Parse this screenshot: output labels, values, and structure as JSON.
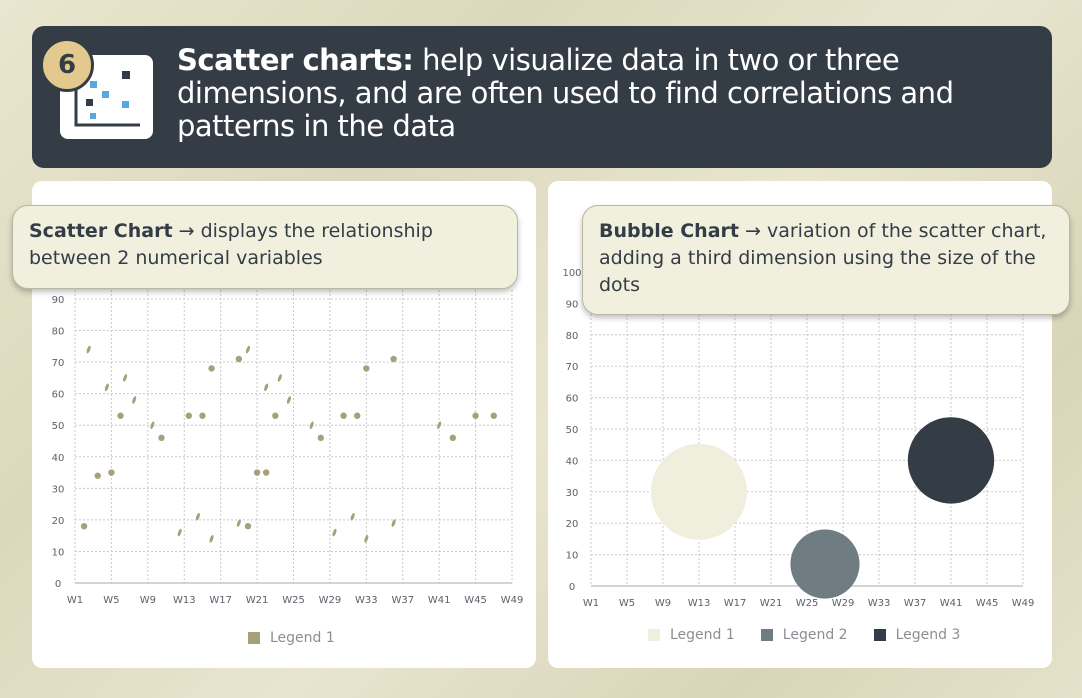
{
  "header": {
    "number": "6",
    "title_bold": "Scatter charts:",
    "title_rest": " help visualize data in two or three dimensions, and are often used to find correlations and patterns in the data",
    "icon": "scatter-chart-icon"
  },
  "callouts": {
    "left": {
      "bold": "Scatter Chart",
      "arrow": "→",
      "text": " displays the relationship between 2 numerical variables"
    },
    "right": {
      "bold": "Bubble Chart",
      "arrow": "→",
      "text": " variation of the scatter chart, adding a third dimension using the size of the dots"
    }
  },
  "colors": {
    "header_bg": "#343c46",
    "scatter_dot": "#a6a07b",
    "bubble1": "#f0eedd",
    "bubble2": "#6f7c81",
    "bubble3": "#343c46"
  },
  "chart_data": [
    {
      "type": "scatter",
      "title": "",
      "xlabel": "",
      "ylabel": "",
      "x_ticks": [
        "W1",
        "W5",
        "W9",
        "W13",
        "W17",
        "W21",
        "W25",
        "W29",
        "W33",
        "W37",
        "W41",
        "W45",
        "W49"
      ],
      "y_ticks": [
        0,
        10,
        20,
        30,
        40,
        50,
        60,
        70,
        80,
        90
      ],
      "ylim": [
        0,
        90
      ],
      "grid": true,
      "legend_position": "bottom-center",
      "series": [
        {
          "name": "Legend 1",
          "points": [
            {
              "x": 2,
              "y": 18,
              "shape": "dot"
            },
            {
              "x": 2.5,
              "y": 74,
              "shape": "dash"
            },
            {
              "x": 3.5,
              "y": 34,
              "shape": "dot"
            },
            {
              "x": 4.5,
              "y": 62,
              "shape": "dash"
            },
            {
              "x": 5,
              "y": 35,
              "shape": "dot"
            },
            {
              "x": 6,
              "y": 53,
              "shape": "dot"
            },
            {
              "x": 6.5,
              "y": 65,
              "shape": "dash"
            },
            {
              "x": 7.5,
              "y": 58,
              "shape": "dash"
            },
            {
              "x": 9.5,
              "y": 50,
              "shape": "dash"
            },
            {
              "x": 10.5,
              "y": 46,
              "shape": "dot"
            },
            {
              "x": 12.5,
              "y": 16,
              "shape": "dash"
            },
            {
              "x": 13.5,
              "y": 53,
              "shape": "dot"
            },
            {
              "x": 14.5,
              "y": 21,
              "shape": "dash"
            },
            {
              "x": 15,
              "y": 53,
              "shape": "dot"
            },
            {
              "x": 16,
              "y": 68,
              "shape": "dot"
            },
            {
              "x": 16,
              "y": 14,
              "shape": "dash"
            },
            {
              "x": 19,
              "y": 19,
              "shape": "dash"
            },
            {
              "x": 19,
              "y": 71,
              "shape": "dot"
            },
            {
              "x": 20,
              "y": 18,
              "shape": "dot"
            },
            {
              "x": 20,
              "y": 74,
              "shape": "dash"
            },
            {
              "x": 21,
              "y": 35,
              "shape": "dot"
            },
            {
              "x": 22,
              "y": 62,
              "shape": "dash"
            },
            {
              "x": 22,
              "y": 35,
              "shape": "dot"
            },
            {
              "x": 23,
              "y": 53,
              "shape": "dot"
            },
            {
              "x": 23.5,
              "y": 65,
              "shape": "dash"
            },
            {
              "x": 24.5,
              "y": 58,
              "shape": "dash"
            },
            {
              "x": 27,
              "y": 50,
              "shape": "dash"
            },
            {
              "x": 28,
              "y": 46,
              "shape": "dot"
            },
            {
              "x": 29.5,
              "y": 16,
              "shape": "dash"
            },
            {
              "x": 30.5,
              "y": 53,
              "shape": "dot"
            },
            {
              "x": 31.5,
              "y": 21,
              "shape": "dash"
            },
            {
              "x": 32,
              "y": 53,
              "shape": "dot"
            },
            {
              "x": 33,
              "y": 68,
              "shape": "dot"
            },
            {
              "x": 33,
              "y": 14,
              "shape": "dash"
            },
            {
              "x": 36,
              "y": 19,
              "shape": "dash"
            },
            {
              "x": 36,
              "y": 71,
              "shape": "dot"
            },
            {
              "x": 41,
              "y": 50,
              "shape": "dash"
            },
            {
              "x": 42.5,
              "y": 46,
              "shape": "dot"
            },
            {
              "x": 45,
              "y": 53,
              "shape": "dot"
            },
            {
              "x": 47,
              "y": 53,
              "shape": "dot"
            }
          ]
        }
      ]
    },
    {
      "type": "bubble",
      "title": "",
      "xlabel": "",
      "ylabel": "",
      "x_ticks": [
        "W1",
        "W5",
        "W9",
        "W13",
        "W17",
        "W21",
        "W25",
        "W29",
        "W33",
        "W37",
        "W41",
        "W45",
        "W49"
      ],
      "y_ticks": [
        0,
        10,
        20,
        30,
        40,
        50,
        60,
        70,
        80,
        90,
        100
      ],
      "ylim": [
        0,
        100
      ],
      "grid": true,
      "legend_position": "bottom-center",
      "series": [
        {
          "name": "Legend 1",
          "x": 13,
          "y": 30,
          "size": 1.0
        },
        {
          "name": "Legend 2",
          "x": 27,
          "y": 7,
          "size": 0.72
        },
        {
          "name": "Legend 3",
          "x": 41,
          "y": 40,
          "size": 0.9
        }
      ]
    }
  ]
}
